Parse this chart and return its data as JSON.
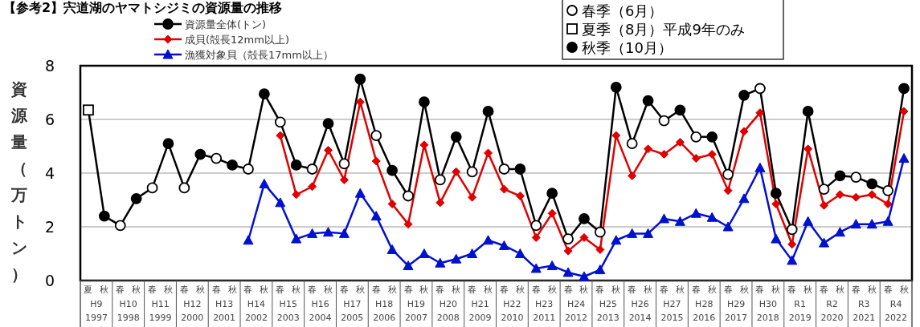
{
  "chart_data": {
    "type": "line",
    "title": "【参考2】宍道湖のヤマトシジミの資源量の推移",
    "ylabel": "資源量（万トン）",
    "categories": [
      "夏",
      "秋",
      "春",
      "秋",
      "春",
      "秋",
      "春",
      "秋",
      "春",
      "秋",
      "春",
      "秋",
      "春",
      "秋",
      "春",
      "秋",
      "春",
      "秋",
      "春",
      "秋",
      "春",
      "秋",
      "春",
      "秋",
      "春",
      "秋",
      "春",
      "秋",
      "春",
      "秋",
      "春",
      "秋",
      "春",
      "秋",
      "春",
      "秋",
      "春",
      "秋",
      "春",
      "秋",
      "春",
      "秋",
      "春",
      "秋",
      "春",
      "秋",
      "春",
      "秋",
      "春",
      "秋",
      "春",
      "秋"
    ],
    "annotations": [
      "H9\n1997",
      "H10\n1998",
      "H11\n1999",
      "H12\n2000",
      "H13\n2001",
      "H14\n2002",
      "H15\n2003",
      "H16\n2004",
      "H17\n2005",
      "H18\n2006",
      "H19\n2007",
      "H20\n2008",
      "H21\n2009",
      "H22\n2010",
      "H23\n2011",
      "H24\n2012",
      "H25\n2013",
      "H26\n2014",
      "H27\n2015",
      "H28\n2016",
      "H29\n2017",
      "H30\n2018",
      "R1\n2019",
      "R2\n2020",
      "R3\n2021",
      "R4\n2022"
    ],
    "ylim": [
      0,
      8
    ],
    "yticks": [
      0,
      2,
      4,
      6,
      8
    ],
    "grid": "y",
    "legend": "top",
    "series": [
      {
        "name": "資源量全体(トン)",
        "color": "#000000",
        "marker": "none",
        "values": [
          6.35,
          2.4,
          2.05,
          3.05,
          3.45,
          5.1,
          3.45,
          4.7,
          4.55,
          4.3,
          4.15,
          6.95,
          5.9,
          4.3,
          4.15,
          5.85,
          4.35,
          7.5,
          5.4,
          4.1,
          3.15,
          6.65,
          3.75,
          5.35,
          4.05,
          6.3,
          4.15,
          4.15,
          2.05,
          3.25,
          1.55,
          2.3,
          1.8,
          7.2,
          5.1,
          6.7,
          5.95,
          6.35,
          5.35,
          5.35,
          3.95,
          6.9,
          7.15,
          3.25,
          1.9,
          6.3,
          3.4,
          3.9,
          3.85,
          3.6,
          3.35,
          7.15
        ]
      },
      {
        "name": "成貝(殻長12mm以上)",
        "color": "#e00000",
        "marker": "diamond",
        "values": [
          null,
          null,
          null,
          null,
          null,
          null,
          null,
          null,
          null,
          null,
          null,
          null,
          5.4,
          3.2,
          3.5,
          4.85,
          3.75,
          6.65,
          4.45,
          2.85,
          2.1,
          5.05,
          2.9,
          4.05,
          3.1,
          4.75,
          3.4,
          3.15,
          1.6,
          2.5,
          1.1,
          1.6,
          1.15,
          5.4,
          3.9,
          4.9,
          4.7,
          5.15,
          4.55,
          4.7,
          3.35,
          5.55,
          6.25,
          2.85,
          1.35,
          4.9,
          2.8,
          3.2,
          3.1,
          3.2,
          2.85,
          6.3
        ]
      },
      {
        "name": "漁獲対象貝（殻長17mm以上）",
        "color": "#0010d0",
        "marker": "triangle",
        "values": [
          null,
          null,
          null,
          null,
          null,
          null,
          null,
          null,
          null,
          null,
          1.5,
          3.6,
          2.9,
          1.55,
          1.75,
          1.8,
          1.75,
          3.25,
          2.4,
          1.15,
          0.55,
          1.0,
          0.65,
          0.8,
          1.0,
          1.5,
          1.3,
          1.0,
          0.45,
          0.55,
          0.3,
          0.15,
          0.4,
          1.5,
          1.75,
          1.75,
          2.3,
          2.2,
          2.5,
          2.35,
          2.0,
          3.05,
          4.2,
          1.55,
          0.75,
          2.2,
          1.4,
          1.8,
          2.1,
          2.1,
          2.2,
          4.55
        ]
      },
      {
        "name": "春季（6月）",
        "type": "scatter",
        "color": "#ffffff",
        "marker": "circle",
        "values": [
          null,
          null,
          2.05,
          null,
          3.45,
          null,
          3.45,
          null,
          4.55,
          null,
          4.15,
          null,
          5.9,
          null,
          4.15,
          null,
          4.35,
          null,
          5.4,
          null,
          3.15,
          null,
          3.75,
          null,
          4.05,
          null,
          4.15,
          null,
          2.05,
          null,
          1.55,
          null,
          1.8,
          null,
          5.1,
          null,
          5.95,
          null,
          5.35,
          null,
          3.95,
          null,
          7.15,
          null,
          1.9,
          null,
          3.4,
          null,
          3.85,
          null,
          3.35,
          null
        ]
      },
      {
        "name": "夏季（8月）平成9年のみ",
        "type": "scatter",
        "color": "#ffffff",
        "marker": "square",
        "values": [
          6.35,
          null,
          null,
          null,
          null,
          null,
          null,
          null,
          null,
          null,
          null,
          null,
          null,
          null,
          null,
          null,
          null,
          null,
          null,
          null,
          null,
          null,
          null,
          null,
          null,
          null,
          null,
          null,
          null,
          null,
          null,
          null,
          null,
          null,
          null,
          null,
          null,
          null,
          null,
          null,
          null,
          null,
          null,
          null,
          null,
          null,
          null,
          null,
          null,
          null,
          null,
          null
        ]
      },
      {
        "name": "秋季（10月）",
        "type": "scatter",
        "color": "#000000",
        "marker": "circle",
        "values": [
          null,
          2.4,
          null,
          3.05,
          null,
          5.1,
          null,
          4.7,
          null,
          4.3,
          null,
          6.95,
          null,
          4.3,
          null,
          5.85,
          null,
          7.5,
          null,
          4.1,
          null,
          6.65,
          null,
          5.35,
          null,
          6.3,
          null,
          4.15,
          null,
          3.25,
          null,
          2.3,
          null,
          7.2,
          null,
          6.7,
          null,
          6.35,
          null,
          5.35,
          null,
          6.9,
          null,
          3.25,
          null,
          6.3,
          null,
          3.9,
          null,
          3.6,
          null,
          7.15
        ]
      }
    ]
  }
}
